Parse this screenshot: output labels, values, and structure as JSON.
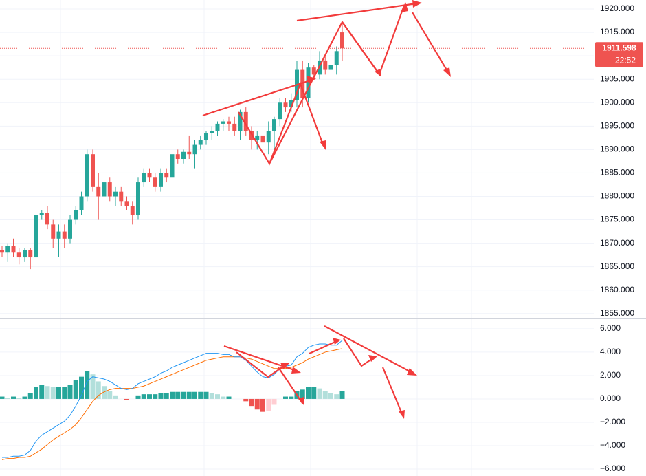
{
  "chart_data": [
    {
      "type": "candlestick",
      "ylim": [
        1854.09,
        1921.91
      ],
      "yticks": [
        {
          "value": 1855,
          "label": "1855.000"
        },
        {
          "value": 1860,
          "label": "1860.000"
        },
        {
          "value": 1865,
          "label": "1865.000"
        },
        {
          "value": 1870,
          "label": "1870.000"
        },
        {
          "value": 1875,
          "label": "1875.000"
        },
        {
          "value": 1880,
          "label": "1880.000"
        },
        {
          "value": 1885,
          "label": "1885.000"
        },
        {
          "value": 1890,
          "label": "1890.000"
        },
        {
          "value": 1895,
          "label": "1895.000"
        },
        {
          "value": 1900,
          "label": "1900.000"
        },
        {
          "value": 1905,
          "label": "1905.000"
        },
        {
          "value": 1910,
          "label": "1910.000"
        },
        {
          "value": 1915,
          "label": "1915.000"
        },
        {
          "value": 1920,
          "label": "1920.000"
        }
      ],
      "grid": true,
      "up_color": "#26a69a",
      "down_color": "#ef5350",
      "open": [
        1868.5,
        1868,
        1869.5,
        1868,
        1867,
        1868.5,
        1867,
        1876,
        1876.5,
        1874,
        1871,
        1872.5,
        1871,
        1875,
        1877,
        1880,
        1889,
        1882,
        1880,
        1883,
        1880,
        1881,
        1879,
        1878,
        1876,
        1883,
        1885,
        1884,
        1882,
        1885,
        1884,
        1889,
        1888,
        1889.5,
        1889,
        1891,
        1892,
        1893.5,
        1894,
        1895.5,
        1896,
        1895.5,
        1894,
        1898,
        1894,
        1892,
        1893,
        1891.5,
        1894,
        1896.5,
        1900,
        1899,
        1900.5,
        1907,
        1901,
        1907.5,
        1906,
        1909,
        1907,
        1908,
        1915
      ],
      "high": [
        1869.5,
        1870,
        1871,
        1869,
        1869,
        1869,
        1876.5,
        1877,
        1878,
        1875,
        1874,
        1874,
        1876,
        1878,
        1881,
        1890,
        1890,
        1885,
        1884,
        1884,
        1882,
        1882,
        1880,
        1879,
        1884,
        1886,
        1886,
        1885,
        1886,
        1886,
        1891,
        1890,
        1890,
        1893,
        1892,
        1893,
        1894,
        1895,
        1896,
        1896.5,
        1897,
        1897,
        1898.5,
        1899,
        1895,
        1894,
        1894,
        1896,
        1897,
        1901,
        1901,
        1902,
        1909,
        1909,
        1908.5,
        1908,
        1911,
        1910,
        1909,
        1912,
        1917
      ],
      "low": [
        1867,
        1866,
        1867,
        1865.5,
        1866,
        1864.5,
        1866,
        1875,
        1873,
        1869,
        1867,
        1869,
        1870,
        1874,
        1876,
        1879,
        1881,
        1875,
        1879,
        1879,
        1878,
        1878,
        1877,
        1874,
        1875,
        1882,
        1883,
        1881,
        1881,
        1883,
        1883,
        1887,
        1887,
        1888,
        1886,
        1890,
        1891,
        1892,
        1893,
        1894,
        1894,
        1893,
        1892,
        1893,
        1890,
        1890,
        1891,
        1889,
        1889,
        1895,
        1898,
        1898,
        1899,
        1899,
        1900,
        1905,
        1905,
        1906,
        1905.5,
        1906,
        1909
      ],
      "close": [
        1868,
        1869.5,
        1868,
        1867,
        1868.5,
        1867,
        1876,
        1876.5,
        1874,
        1871,
        1872.5,
        1871,
        1875,
        1877,
        1880,
        1889,
        1882,
        1880,
        1883,
        1880,
        1881,
        1879,
        1878,
        1876,
        1883,
        1885,
        1884,
        1882,
        1885,
        1884,
        1889,
        1888,
        1889.5,
        1889,
        1891,
        1892,
        1893.5,
        1894,
        1895.5,
        1896,
        1895.5,
        1894,
        1898,
        1894,
        1892,
        1893,
        1891.5,
        1894,
        1896.5,
        1900,
        1899,
        1900.5,
        1907,
        1901,
        1907.5,
        1906,
        1909,
        1907,
        1908,
        1911,
        1911.598
      ],
      "last_price": 1911.598,
      "countdown": "22:52"
    },
    {
      "type": "macd",
      "ylim": [
        -6.59,
        6.76
      ],
      "yticks": [
        {
          "value": -6,
          "label": "−6.000"
        },
        {
          "value": -4,
          "label": "−4.000"
        },
        {
          "value": -2,
          "label": "−2.000"
        },
        {
          "value": 0,
          "label": "0.000"
        },
        {
          "value": 2,
          "label": "2.000"
        },
        {
          "value": 4,
          "label": "4.000"
        },
        {
          "value": 6,
          "label": "6.000"
        }
      ],
      "grid": true,
      "histogram": {
        "colors": [
          "#26a69a",
          "#b2dfdb",
          "#ef5350",
          "#ffcdd2"
        ],
        "values": [
          0.2,
          0.1,
          0.2,
          0.1,
          0.2,
          0.5,
          1.0,
          1.2,
          1.1,
          1.0,
          1.0,
          1.0,
          1.2,
          1.6,
          1.9,
          2.4,
          2.1,
          1.5,
          1.1,
          0.7,
          0.3,
          0.0,
          -0.1,
          0.0,
          0.3,
          0.4,
          0.4,
          0.4,
          0.5,
          0.5,
          0.6,
          0.6,
          0.6,
          0.6,
          0.6,
          0.6,
          0.6,
          0.5,
          0.4,
          0.2,
          0.2,
          0.0,
          0.0,
          -0.2,
          -0.6,
          -0.9,
          -1.1,
          -1.0,
          -0.5,
          0.0,
          0.2,
          0.2,
          0.7,
          0.8,
          1.0,
          1.0,
          0.9,
          0.7,
          0.5,
          0.4,
          0.7
        ]
      },
      "macd": {
        "color": "#2196f3",
        "values": [
          -5.0,
          -5.0,
          -4.9,
          -4.9,
          -4.8,
          -4.4,
          -3.6,
          -3.1,
          -2.8,
          -2.5,
          -2.2,
          -1.9,
          -1.4,
          -0.6,
          0.3,
          1.5,
          1.9,
          1.8,
          1.7,
          1.5,
          1.2,
          0.9,
          0.8,
          0.9,
          1.3,
          1.5,
          1.7,
          1.9,
          2.2,
          2.4,
          2.7,
          2.9,
          3.1,
          3.3,
          3.5,
          3.7,
          3.9,
          3.9,
          3.9,
          3.8,
          3.8,
          3.6,
          3.6,
          3.3,
          2.8,
          2.3,
          1.9,
          1.8,
          2.1,
          2.6,
          2.8,
          2.9,
          3.6,
          3.9,
          4.4,
          4.6,
          4.7,
          4.7,
          4.6,
          4.6,
          5.0
        ]
      },
      "signal": {
        "color": "#ff6d00",
        "values": [
          -5.2,
          -5.1,
          -5.1,
          -5.0,
          -5.0,
          -4.9,
          -4.6,
          -4.3,
          -3.9,
          -3.5,
          -3.2,
          -2.9,
          -2.6,
          -2.2,
          -1.6,
          -0.9,
          -0.2,
          0.3,
          0.6,
          0.8,
          0.9,
          0.9,
          0.9,
          0.9,
          1.0,
          1.1,
          1.3,
          1.5,
          1.7,
          1.9,
          2.1,
          2.3,
          2.5,
          2.7,
          2.9,
          3.1,
          3.3,
          3.4,
          3.5,
          3.6,
          3.6,
          3.6,
          3.6,
          3.5,
          3.4,
          3.2,
          3.0,
          2.8,
          2.6,
          2.6,
          2.6,
          2.7,
          2.9,
          3.1,
          3.4,
          3.6,
          3.8,
          4.0,
          4.1,
          4.2,
          4.3
        ]
      }
    }
  ]
}
